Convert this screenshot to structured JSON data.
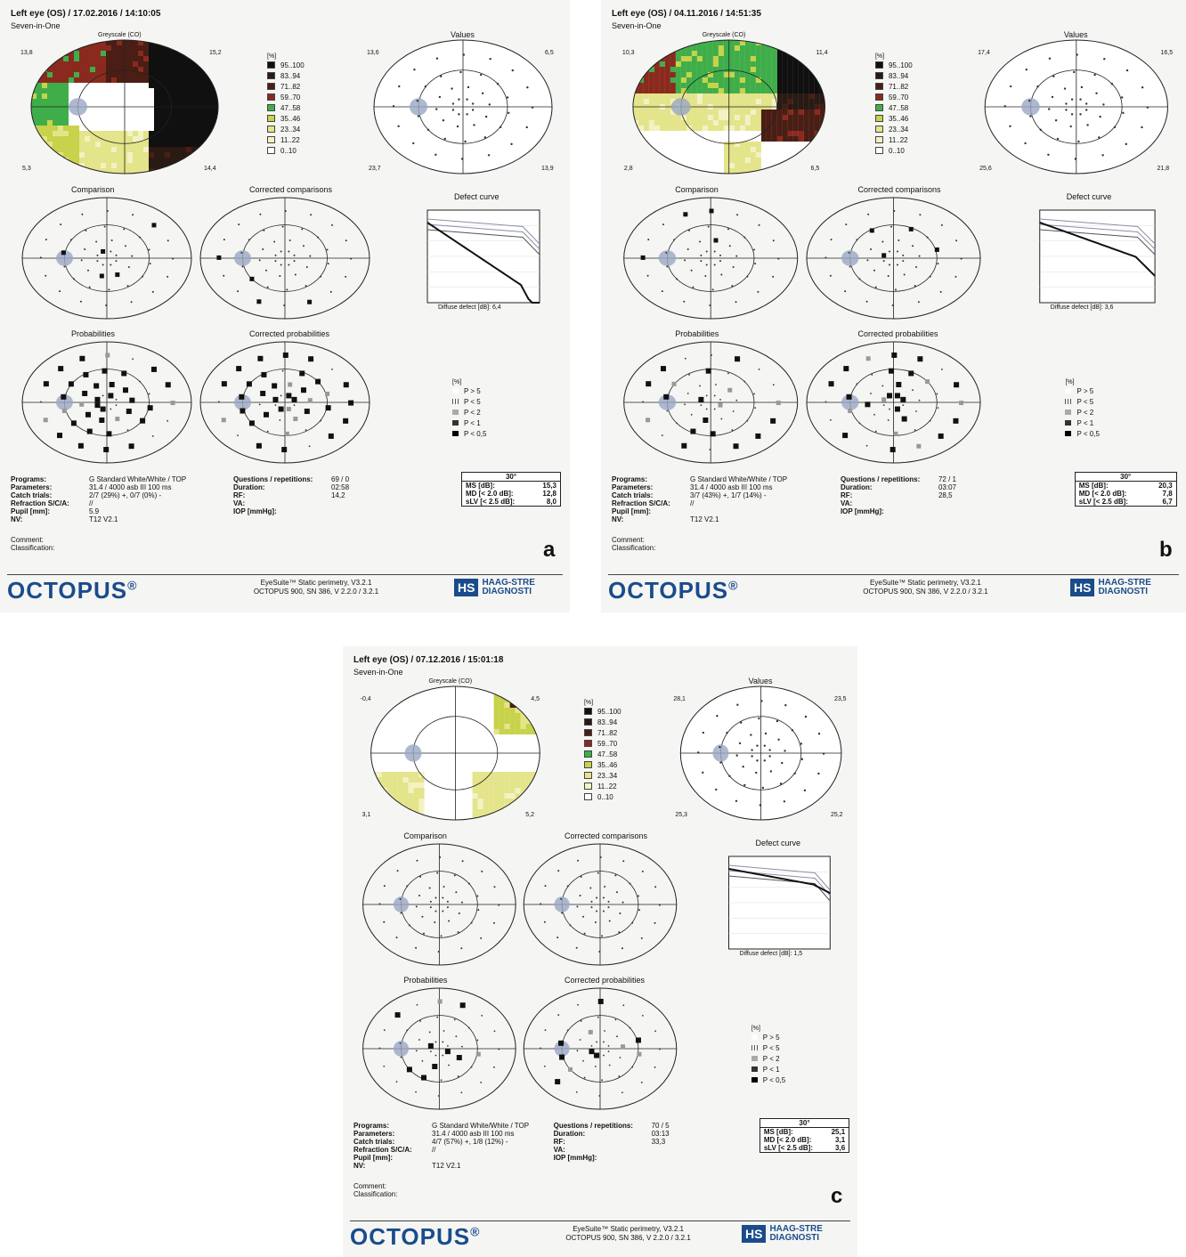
{
  "reports": [
    {
      "id": "a",
      "header": {
        "title": "Left eye (OS) / 17.02.2016 / 14:10:05",
        "subtitle": "Seven-in-One"
      },
      "greyscale": {
        "title": "Greyscale (CO)",
        "corners": [
          "13,8",
          "15,2",
          "5,3",
          "14,4"
        ]
      },
      "values_title": "Values",
      "values_corners": [
        "13,6",
        "6,5",
        "23,7",
        "13,9"
      ],
      "comparison_title": "Comparison",
      "corrected_comparisons_title": "Corrected comparisons",
      "defect_curve": {
        "title": "Defect curve",
        "diffuse_label": "Diffuse defect [dB]:",
        "diffuse_value": "6,4"
      },
      "probabilities_title": "Probabilities",
      "corrected_probabilities_title": "Corrected probabilities",
      "info_left": [
        {
          "k": "Programs:",
          "v": "G Standard   White/White / TOP"
        },
        {
          "k": "Parameters:",
          "v": "31.4  / 4000 asb III 100 ms"
        },
        {
          "k": "Catch trials:",
          "v": "2/7 (29%) +, 0/7 (0%) -"
        },
        {
          "k": "Refraction S/C/A:",
          "v": "//"
        },
        {
          "k": "Pupil [mm]:",
          "v": "5.9"
        },
        {
          "k": "NV:",
          "v": "T12 V2.1"
        }
      ],
      "info_right": [
        {
          "k": "Questions / repetitions:",
          "v": "69 / 0"
        },
        {
          "k": "Duration:",
          "v": "02:58"
        },
        {
          "k": "RF:",
          "v": "14,2"
        },
        {
          "k": "VA:",
          "v": ""
        },
        {
          "k": "IOP [mmHg]:",
          "v": ""
        }
      ],
      "stats": {
        "head": "30°",
        "ms_label": "MS [dB]:",
        "ms": "15,3",
        "md_label": "MD [< 2.0 dB]:",
        "md": "12,8",
        "slv_label": "sLV [< 2.5 dB]:",
        "slv": "8,0"
      },
      "comment": "Comment:",
      "classification": "Classification:",
      "letter": "a",
      "footer": {
        "brand": "OCTOPUS",
        "line1": "EyeSuite™ Static perimetry, V3.2.1",
        "line2": "OCTOPUS 900, SN 386, V 2.2.0  / 3.2.1",
        "hs_logo": "HS",
        "hs_name1": "HAAG-STRE",
        "hs_name2": "DIAGNOSTI"
      }
    },
    {
      "id": "b",
      "header": {
        "title": "Left eye (OS) / 04.11.2016 / 14:51:35",
        "subtitle": "Seven-in-One"
      },
      "greyscale": {
        "title": "Greyscale (CO)",
        "corners": [
          "10,3",
          "11,4",
          "2,8",
          "6,5"
        ]
      },
      "values_title": "Values",
      "values_corners": [
        "17,4",
        "16,5",
        "25,6",
        "21,8"
      ],
      "comparison_title": "Comparison",
      "corrected_comparisons_title": "Corrected comparisons",
      "defect_curve": {
        "title": "Defect curve",
        "diffuse_label": "Diffuse defect [dB]:",
        "diffuse_value": "3,6"
      },
      "probabilities_title": "Probabilities",
      "corrected_probabilities_title": "Corrected probabilities",
      "info_left": [
        {
          "k": "Programs:",
          "v": "G Standard   White/White / TOP"
        },
        {
          "k": "Parameters:",
          "v": "31.4  / 4000 asb III 100 ms"
        },
        {
          "k": "Catch trials:",
          "v": "3/7 (43%) +, 1/7 (14%) -"
        },
        {
          "k": "Refraction S/C/A:",
          "v": "//"
        },
        {
          "k": "Pupil [mm]:",
          "v": ""
        },
        {
          "k": "NV:",
          "v": "T12 V2.1"
        }
      ],
      "info_right": [
        {
          "k": "Questions / repetitions:",
          "v": "72 / 1"
        },
        {
          "k": "Duration:",
          "v": "03:07"
        },
        {
          "k": "RF:",
          "v": "28,5"
        },
        {
          "k": "VA:",
          "v": ""
        },
        {
          "k": "IOP [mmHg]:",
          "v": ""
        }
      ],
      "stats": {
        "head": "30°",
        "ms_label": "MS [dB]:",
        "ms": "20,3",
        "md_label": "MD [< 2.0 dB]:",
        "md": "7,8",
        "slv_label": "sLV [< 2.5 dB]:",
        "slv": "6,7"
      },
      "comment": "Comment:",
      "classification": "Classification:",
      "letter": "b",
      "footer": {
        "brand": "OCTOPUS",
        "line1": "EyeSuite™ Static perimetry, V3.2.1",
        "line2": "OCTOPUS 900, SN 386, V 2.2.0  / 3.2.1",
        "hs_logo": "HS",
        "hs_name1": "HAAG-STRE",
        "hs_name2": "DIAGNOSTI"
      }
    },
    {
      "id": "c",
      "header": {
        "title": "Left eye (OS) / 07.12.2016 / 15:01:18",
        "subtitle": "Seven-in-One"
      },
      "greyscale": {
        "title": "Greyscale (CO)",
        "corners": [
          "-0,4",
          "4,5",
          "3,1",
          "5,2"
        ]
      },
      "values_title": "Values",
      "values_corners": [
        "28,1",
        "23,5",
        "25,3",
        "25,2"
      ],
      "comparison_title": "Comparison",
      "corrected_comparisons_title": "Corrected comparisons",
      "defect_curve": {
        "title": "Defect curve",
        "diffuse_label": "Diffuse defect [dB]:",
        "diffuse_value": "1,5"
      },
      "probabilities_title": "Probabilities",
      "corrected_probabilities_title": "Corrected probabilities",
      "info_left": [
        {
          "k": "Programs:",
          "v": "G Standard   White/White / TOP"
        },
        {
          "k": "Parameters:",
          "v": "31.4  / 4000 asb III 100 ms"
        },
        {
          "k": "Catch trials:",
          "v": "4/7 (57%) +, 1/8 (12%) -"
        },
        {
          "k": "Refraction S/C/A:",
          "v": "//"
        },
        {
          "k": "Pupil [mm]:",
          "v": ""
        },
        {
          "k": "NV:",
          "v": "T12 V2.1"
        }
      ],
      "info_right": [
        {
          "k": "Questions / repetitions:",
          "v": "70 / 5"
        },
        {
          "k": "Duration:",
          "v": "03:13"
        },
        {
          "k": "RF:",
          "v": "33,3"
        },
        {
          "k": "VA:",
          "v": ""
        },
        {
          "k": "IOP [mmHg]:",
          "v": ""
        }
      ],
      "stats": {
        "head": "30°",
        "ms_label": "MS [dB]:",
        "ms": "25,1",
        "md_label": "MD [< 2.0 dB]:",
        "md": "3,1",
        "slv_label": "sLV [< 2.5 dB]:",
        "slv": "3,6"
      },
      "comment": "Comment:",
      "classification": "Classification:",
      "letter": "c",
      "footer": {
        "brand": "OCTOPUS",
        "line1": "EyeSuite™ Static perimetry, V3.2.1",
        "line2": "OCTOPUS 900, SN 386, V 2.2.0  / 3.2.1",
        "hs_logo": "HS",
        "hs_name1": "HAAG-STRE",
        "hs_name2": "DIAGNOSTI"
      }
    }
  ],
  "greyscale_legend": {
    "unit": "[%]",
    "items": [
      {
        "label": "95..100",
        "color": "#101010"
      },
      {
        "label": "83..94",
        "color": "#2a1a14"
      },
      {
        "label": "71..82",
        "color": "#4a1e14"
      },
      {
        "label": "59..70",
        "color": "#8a2a1e"
      },
      {
        "label": "47..58",
        "color": "#3fae4a"
      },
      {
        "label": "35..46",
        "color": "#c8d24a"
      },
      {
        "label": "23..34",
        "color": "#e4e48a"
      },
      {
        "label": "11..22",
        "color": "#f2f2c4"
      },
      {
        "label": "0..10",
        "color": "#ffffff"
      }
    ]
  },
  "prob_legend": {
    "unit": "[%]",
    "items": [
      "P > 5",
      "P < 5",
      "P < 2",
      "P < 1",
      "P < 0,5"
    ]
  }
}
